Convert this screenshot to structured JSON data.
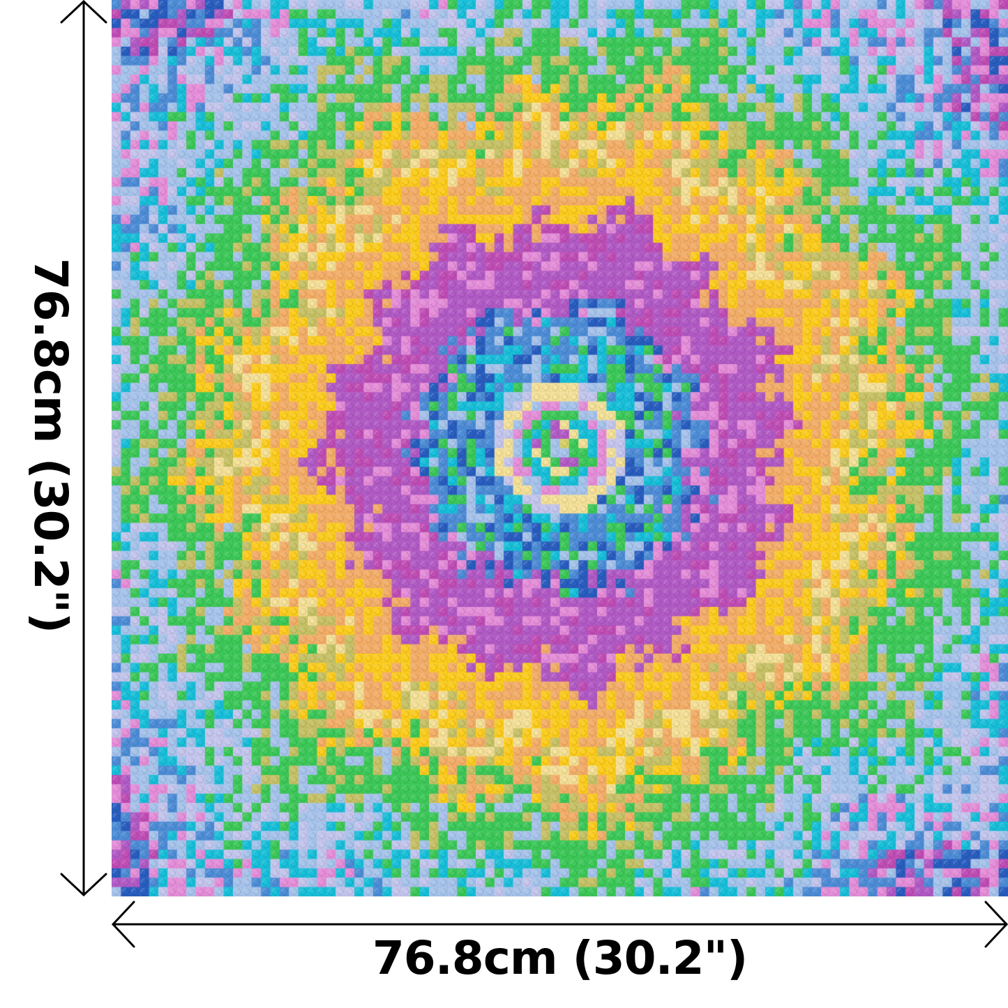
{
  "dimensions": {
    "width_label": "76.8cm (30.2\")",
    "height_label": "76.8cm (30.2\")"
  },
  "mosaic": {
    "studs_per_side": 96,
    "palette": {
      "center_yellow": "#d9d36a",
      "green": "#3ecb5a",
      "light_yellow": "#f7e39a",
      "blue": "#4f8fd9",
      "dark_blue": "#2a5fc2",
      "cyan": "#19c2dc",
      "light_blue": "#a9c6ee",
      "lavender": "#c6c8f0",
      "purple": "#b45cc8",
      "pink": "#e890dc",
      "magenta": "#c24fb8",
      "orange": "#f6b06a",
      "yellow": "#ffcf1f",
      "olive": "#c9c468"
    }
  }
}
